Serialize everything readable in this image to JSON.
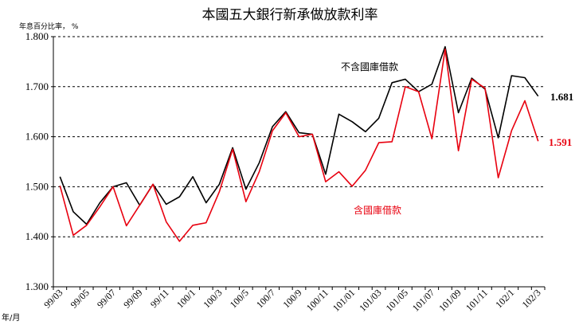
{
  "chart_data": {
    "type": "line",
    "title": "本國五大銀行新承做放款利率",
    "ylabel": "年息百分比率， %",
    "xlabel": "年/月",
    "ylim": [
      1.3,
      1.8
    ],
    "yticks": [
      "1.300",
      "1.400",
      "1.500",
      "1.600",
      "1.700",
      "1.800"
    ],
    "grid": "horizontal dashed",
    "x": [
      "99/03",
      "99/04",
      "99/05",
      "99/06",
      "99/07",
      "99/08",
      "99/09",
      "99/10",
      "99/11",
      "99/12",
      "100/1",
      "100/2",
      "100/3",
      "100/4",
      "100/5",
      "100/6",
      "100/7",
      "100/8",
      "100/9",
      "100/10",
      "100/11",
      "100/12",
      "101/01",
      "101/02",
      "101/03",
      "101/04",
      "101/05",
      "101/06",
      "101/07",
      "101/08",
      "101/09",
      "101/10",
      "101/11",
      "101/12",
      "102/1",
      "102/2",
      "102/3"
    ],
    "xticks": [
      "99/03",
      "99/05",
      "99/07",
      "99/09",
      "99/11",
      "100/1",
      "100/3",
      "100/5",
      "100/7",
      "100/9",
      "100/11",
      "101/01",
      "101/03",
      "101/05",
      "101/07",
      "101/09",
      "101/11",
      "102/1",
      "102/3"
    ],
    "series": [
      {
        "name": "不含國庫借款",
        "color": "#000000",
        "end_label": "1.681",
        "values": [
          1.52,
          1.45,
          1.425,
          1.468,
          1.5,
          1.508,
          1.463,
          1.505,
          1.465,
          1.48,
          1.52,
          1.468,
          1.505,
          1.578,
          1.495,
          1.548,
          1.62,
          1.65,
          1.608,
          1.605,
          1.525,
          1.645,
          1.63,
          1.61,
          1.637,
          1.708,
          1.715,
          1.69,
          1.705,
          1.78,
          1.648,
          1.717,
          1.695,
          1.598,
          1.722,
          1.718,
          1.681
        ]
      },
      {
        "name": "含國庫借款",
        "color": "#e8000f",
        "end_label": "1.591",
        "values": [
          1.502,
          1.403,
          1.423,
          1.46,
          1.5,
          1.422,
          1.463,
          1.505,
          1.43,
          1.391,
          1.423,
          1.428,
          1.49,
          1.575,
          1.47,
          1.53,
          1.612,
          1.648,
          1.6,
          1.605,
          1.51,
          1.53,
          1.501,
          1.533,
          1.588,
          1.59,
          1.7,
          1.69,
          1.596,
          1.775,
          1.572,
          1.715,
          1.697,
          1.518,
          1.612,
          1.672,
          1.591
        ]
      }
    ]
  }
}
